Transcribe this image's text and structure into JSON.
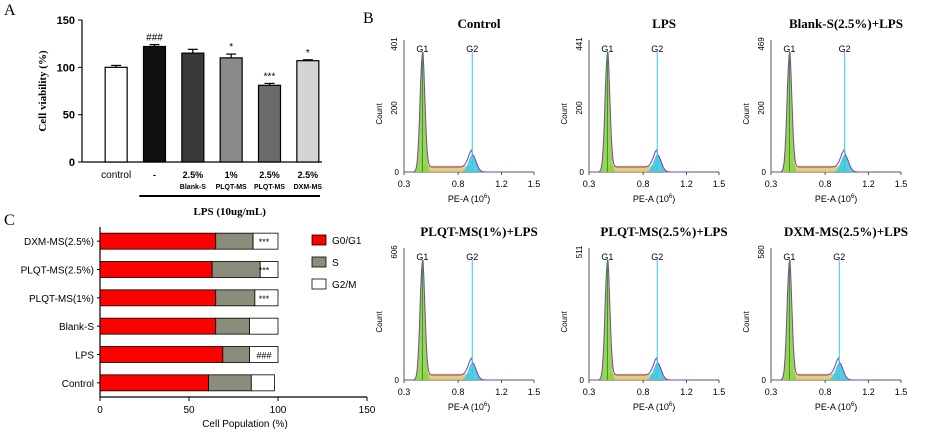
{
  "panel_labels": {
    "a": "A",
    "b": "B",
    "c": "C"
  },
  "chart_data": [
    {
      "id": "A",
      "type": "bar",
      "ylabel": "Cell viability (%)",
      "xlabel": "LPS  (10ug/mL)",
      "ylim": [
        0,
        150
      ],
      "yticks": [
        "0",
        "50",
        "100",
        "150"
      ],
      "categories": [
        {
          "line1": "control",
          "line2": ""
        },
        {
          "line1": "-",
          "line2": ""
        },
        {
          "line1": "2.5%",
          "line2": "Blank-S"
        },
        {
          "line1": "1%",
          "line2": "PLQT-MS"
        },
        {
          "line1": "2.5%",
          "line2": "PLQT-MS"
        },
        {
          "line1": "2.5%",
          "line2": "DXM-MS"
        }
      ],
      "values": [
        100,
        122,
        115,
        110,
        81,
        107
      ],
      "errors": [
        2,
        2,
        4,
        4,
        2,
        1
      ],
      "annotations": [
        "",
        "###",
        "",
        "*",
        "***",
        "*"
      ],
      "colors": [
        "#ffffff",
        "#111111",
        "#3a3a3a",
        "#8a8a8a",
        "#6a6a6a",
        "#d4d4d4"
      ]
    },
    {
      "id": "B",
      "type": "area",
      "description_free": true,
      "xlabel": "PE-A",
      "xlabel_unit": "(10",
      "xlabel_exp": "6",
      "xticks": [
        "0.3",
        "0.8",
        "1.2",
        "1.5"
      ],
      "ylabel": "Count",
      "peak_labels": [
        "G1",
        "G2"
      ],
      "plots": [
        {
          "title": "Control",
          "ymax_label": "401",
          "ymid_label": "200",
          "g1": 0.47,
          "g2": 0.93
        },
        {
          "title": "LPS",
          "ymax_label": "441",
          "ymid_label": "200",
          "g1": 0.47,
          "g2": 0.93
        },
        {
          "title": "Blank-S(2.5%)+LPS",
          "ymax_label": "469",
          "ymid_label": "200",
          "g1": 0.47,
          "g2": 0.98
        },
        {
          "title": "PLQT-MS(1%)+LPS",
          "ymax_label": "606",
          "ymid_label": "",
          "g1": 0.47,
          "g2": 0.93
        },
        {
          "title": "PLQT-MS(2.5%)+LPS",
          "ymax_label": "511",
          "ymid_label": "",
          "g1": 0.47,
          "g2": 0.93
        },
        {
          "title": "DXM-MS(2.5%)+LPS",
          "ymax_label": "580",
          "ymid_label": "",
          "g1": 0.47,
          "g2": 0.93
        }
      ]
    },
    {
      "id": "C",
      "type": "bar",
      "orientation": "horizontal-stacked",
      "xlabel": "Cell Population (%)",
      "xlim": [
        0,
        150
      ],
      "xticks": [
        "0",
        "50",
        "100",
        "150"
      ],
      "categories": [
        "DXM-MS(2.5%)",
        "PLQT-MS(2.5%)",
        "PLQT-MS(1%)",
        "Blank-S",
        "LPS",
        "Control"
      ],
      "series": [
        {
          "name": "G0/G1",
          "color": "#ff0000",
          "values": [
            65,
            63,
            65,
            65,
            69,
            61
          ]
        },
        {
          "name": "S",
          "color": "#8c8c7a",
          "values": [
            21,
            27,
            22,
            19,
            15,
            24
          ]
        },
        {
          "name": "G2/M",
          "color": "#ffffff",
          "values": [
            14,
            10,
            13,
            16,
            16,
            13
          ]
        }
      ],
      "annotations": [
        "***",
        "***",
        "***",
        "",
        "###",
        ""
      ]
    }
  ]
}
